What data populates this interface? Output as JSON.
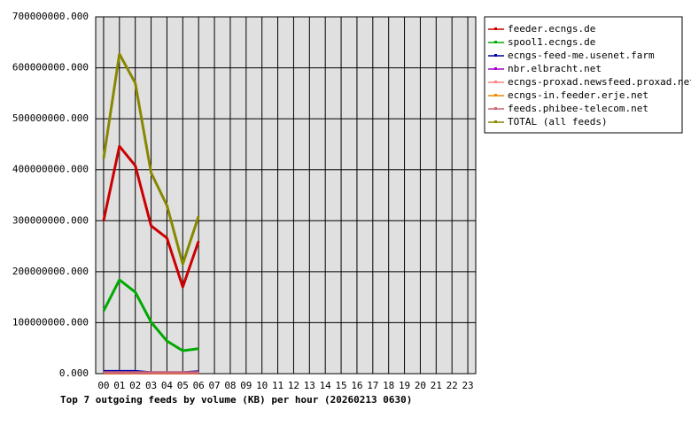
{
  "chart_data": {
    "type": "line",
    "title": "Top 7 outgoing feeds by volume (KB) per hour (20260213 0630)",
    "categories": [
      "00",
      "01",
      "02",
      "03",
      "04",
      "05",
      "06",
      "07",
      "08",
      "09",
      "10",
      "11",
      "12",
      "13",
      "14",
      "15",
      "16",
      "17",
      "18",
      "19",
      "20",
      "21",
      "22",
      "23"
    ],
    "series": [
      {
        "name": "feeder.ecngs.de",
        "color": "#cc0000",
        "values": [
          300000000,
          446000000,
          408000000,
          290000000,
          266000000,
          170000000,
          260000000,
          null,
          null,
          null,
          null,
          null,
          null,
          null,
          null,
          null,
          null,
          null,
          null,
          null,
          null,
          null,
          null,
          null
        ]
      },
      {
        "name": "spool1.ecngs.de",
        "color": "#00aa00",
        "values": [
          123000000,
          184000000,
          160000000,
          101000000,
          64000000,
          45000000,
          49000000,
          null,
          null,
          null,
          null,
          null,
          null,
          null,
          null,
          null,
          null,
          null,
          null,
          null,
          null,
          null,
          null,
          null
        ]
      },
      {
        "name": "ecngs-feed-me.usenet.farm",
        "color": "#0000aa",
        "values": [
          4500000,
          4500000,
          4500000,
          2000000,
          2000000,
          2000000,
          4000000,
          null,
          null,
          null,
          null,
          null,
          null,
          null,
          null,
          null,
          null,
          null,
          null,
          null,
          null,
          null,
          null,
          null
        ]
      },
      {
        "name": "nbr.elbracht.net",
        "color": "#aa00cc",
        "values": [
          1000000,
          1000000,
          1000000,
          1000000,
          1000000,
          1000000,
          1000000,
          null,
          null,
          null,
          null,
          null,
          null,
          null,
          null,
          null,
          null,
          null,
          null,
          null,
          null,
          null,
          null,
          null
        ]
      },
      {
        "name": "ecngs-proxad.newsfeed.proxad.net",
        "color": "#ff8080",
        "values": [
          2000000,
          2000000,
          2000000,
          2000000,
          2000000,
          2000000,
          2000000,
          null,
          null,
          null,
          null,
          null,
          null,
          null,
          null,
          null,
          null,
          null,
          null,
          null,
          null,
          null,
          null,
          null
        ]
      },
      {
        "name": "ecngs-in.feeder.erje.net",
        "color": "#ee8800",
        "values": [
          1000000,
          1000000,
          1000000,
          1000000,
          1000000,
          1000000,
          1000000,
          null,
          null,
          null,
          null,
          null,
          null,
          null,
          null,
          null,
          null,
          null,
          null,
          null,
          null,
          null,
          null,
          null
        ]
      },
      {
        "name": "feeds.phibee-telecom.net",
        "color": "#cc6677",
        "values": [
          2000000,
          2000000,
          2000000,
          2000000,
          2000000,
          2000000,
          2000000,
          null,
          null,
          null,
          null,
          null,
          null,
          null,
          null,
          null,
          null,
          null,
          null,
          null,
          null,
          null,
          null,
          null
        ]
      },
      {
        "name": "TOTAL (all feeds)",
        "color": "#888800",
        "values": [
          422000000,
          627000000,
          570000000,
          394000000,
          330000000,
          215000000,
          309000000,
          null,
          null,
          null,
          null,
          null,
          null,
          null,
          null,
          null,
          null,
          null,
          null,
          null,
          null,
          null,
          null,
          null
        ]
      }
    ],
    "ylim": [
      0,
      700000000
    ],
    "yticks": [
      {
        "value": 0,
        "label": "0.000"
      },
      {
        "value": 100000000,
        "label": "100000000.000"
      },
      {
        "value": 200000000,
        "label": "200000000.000"
      },
      {
        "value": 300000000,
        "label": "300000000.000"
      },
      {
        "value": 400000000,
        "label": "400000000.000"
      },
      {
        "value": 500000000,
        "label": "500000000.000"
      },
      {
        "value": 600000000,
        "label": "600000000.000"
      },
      {
        "value": 700000000,
        "label": "700000000.000"
      }
    ],
    "grid": true,
    "legend": "right"
  }
}
